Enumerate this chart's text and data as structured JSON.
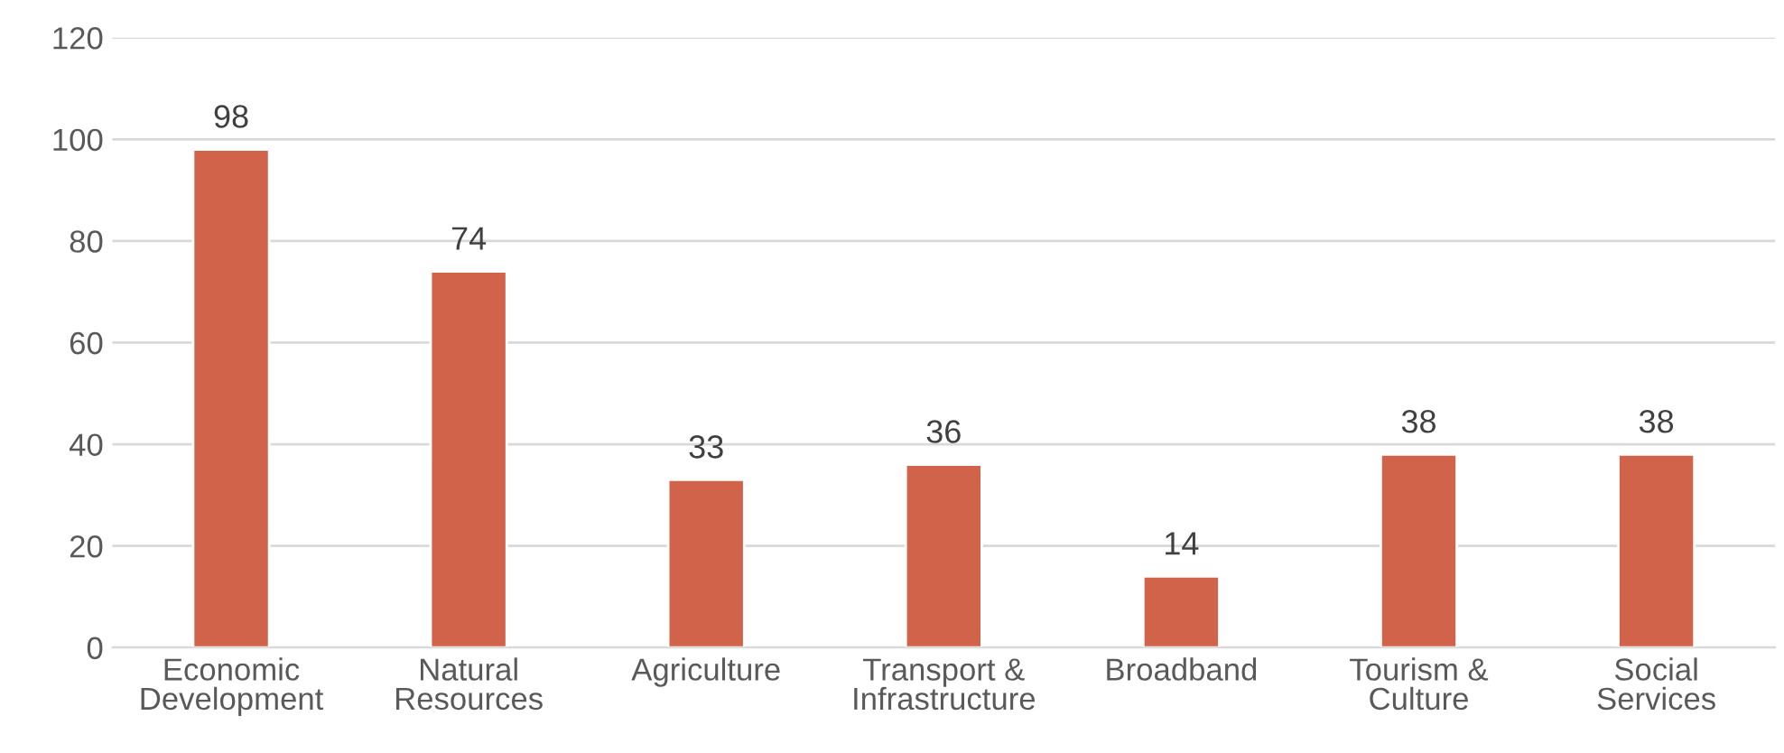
{
  "chart_data": {
    "type": "bar",
    "categories": [
      "Economic\nDevelopment",
      "Natural\nResources",
      "Agriculture",
      "Transport &\nInfrastructure",
      "Broadband",
      "Tourism &\nCulture",
      "Social\nServices"
    ],
    "values": [
      98,
      74,
      33,
      36,
      14,
      38,
      38
    ],
    "color": "#d0634a",
    "ylim": [
      0,
      120
    ],
    "yticks": [
      0,
      20,
      40,
      60,
      80,
      100,
      120
    ],
    "grid": "y",
    "data_labels": true,
    "legend": false
  }
}
